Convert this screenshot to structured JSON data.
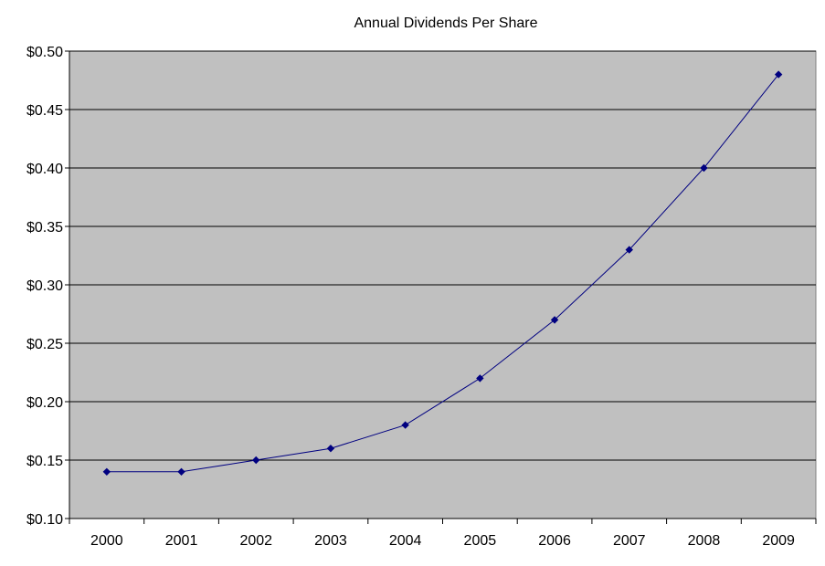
{
  "chart_data": {
    "type": "line",
    "title": "Annual Dividends Per Share",
    "xlabel": "",
    "ylabel": "",
    "categories": [
      "2000",
      "2001",
      "2002",
      "2003",
      "2004",
      "2005",
      "2006",
      "2007",
      "2008",
      "2009"
    ],
    "series": [
      {
        "values": [
          0.14,
          0.14,
          0.15,
          0.16,
          0.18,
          0.22,
          0.27,
          0.33,
          0.4,
          0.48
        ]
      }
    ],
    "ylim": [
      0.1,
      0.5
    ],
    "yticks": [
      0.1,
      0.15,
      0.2,
      0.25,
      0.3,
      0.35,
      0.4,
      0.45,
      0.5
    ],
    "ytick_labels": [
      "$0.10",
      "$0.15",
      "$0.20",
      "$0.25",
      "$0.30",
      "$0.35",
      "$0.40",
      "$0.45",
      "$0.50"
    ],
    "grid": true,
    "legend": "none",
    "plot_background": "#c0c0c0",
    "series_color": "#000080"
  }
}
